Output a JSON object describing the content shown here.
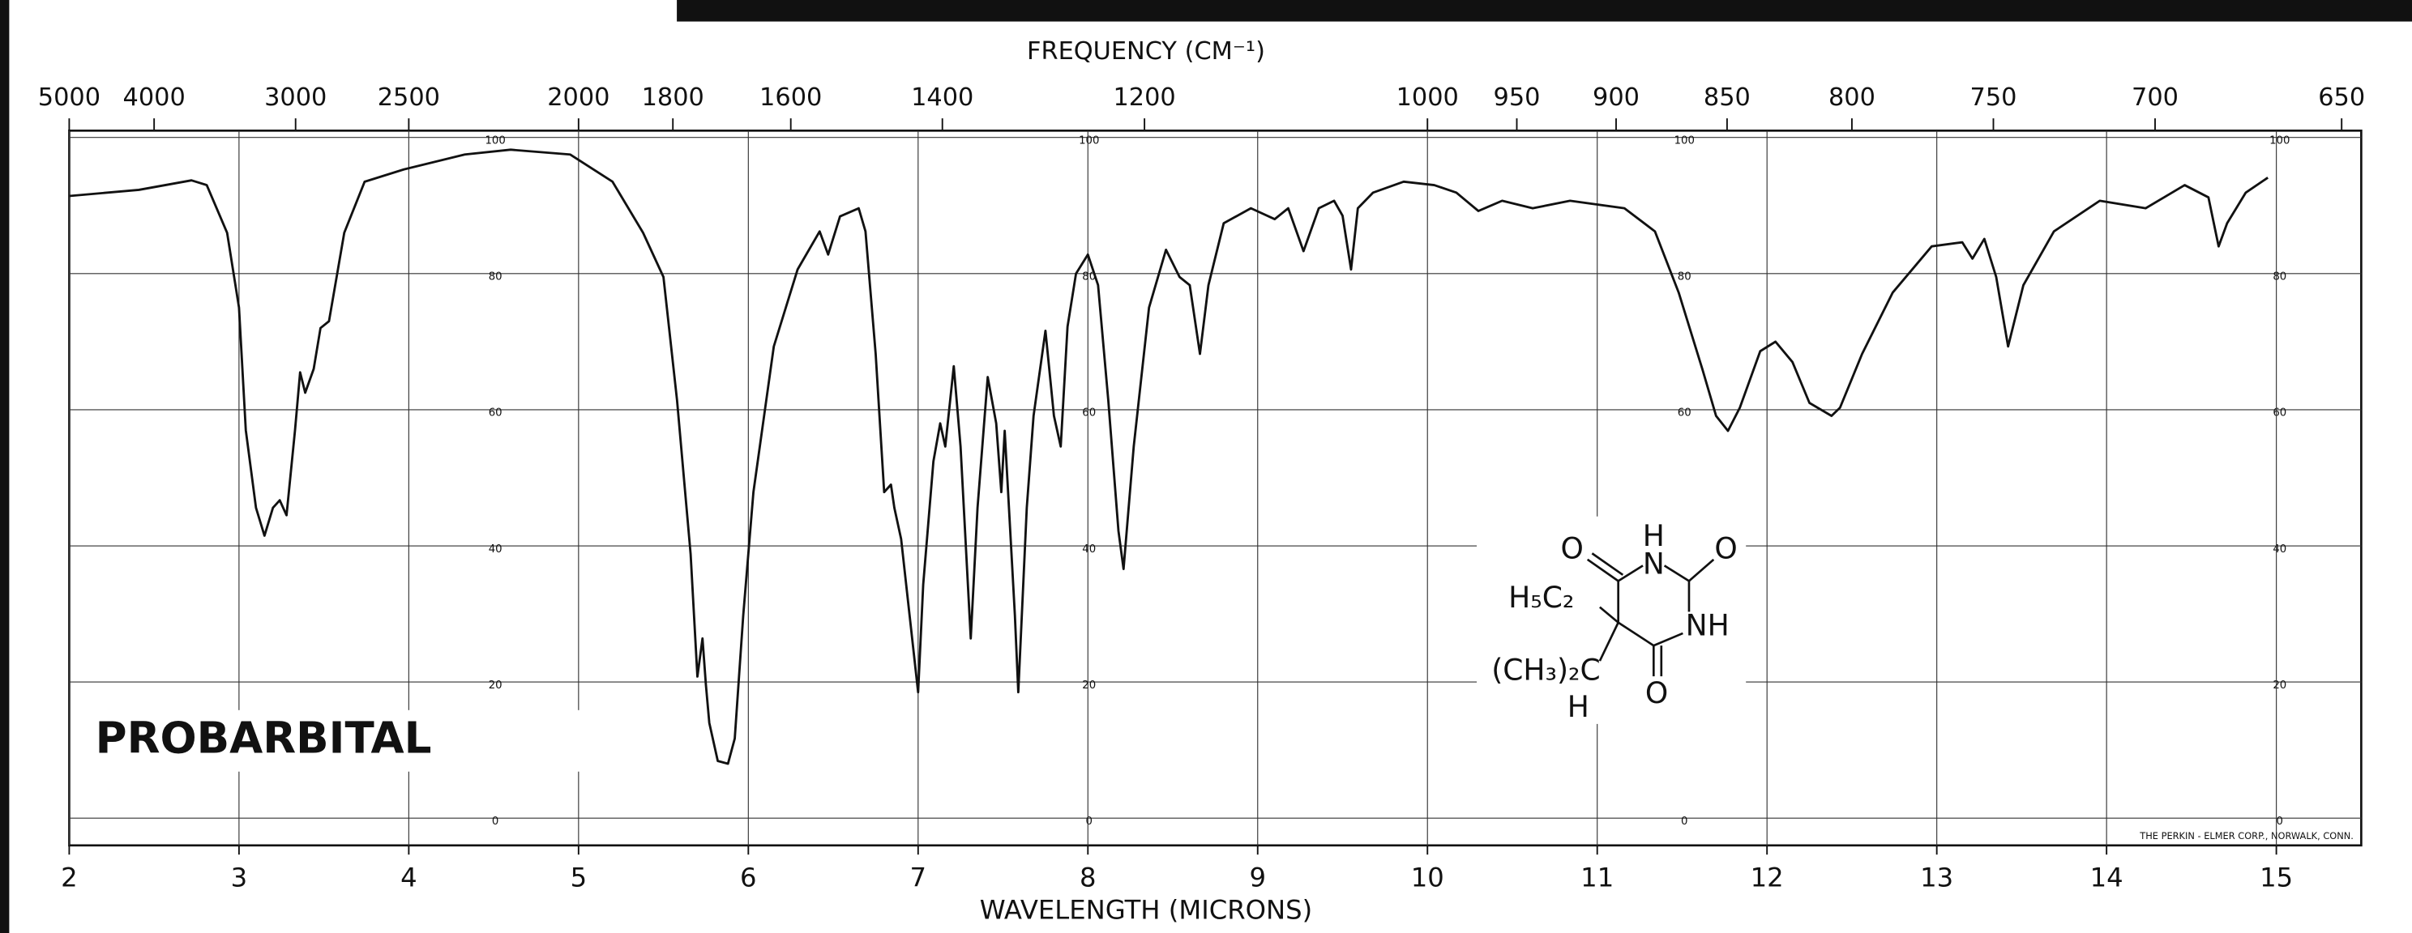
{
  "chart_data": {
    "type": "line",
    "title": "PROBARBITAL",
    "x_label": "WAVELENGTH (MICRONS)",
    "x2_label": "FREQUENCY (CM⁻¹)",
    "credit": "THE PERKIN - ELMER CORP., NORWALK, CONN.",
    "xlim": [
      2,
      15.5
    ],
    "xticks": [
      2,
      3,
      4,
      5,
      6,
      7,
      8,
      9,
      10,
      11,
      12,
      13,
      14,
      15
    ],
    "x2ticks": [
      5000,
      4000,
      3000,
      2500,
      2000,
      1800,
      1600,
      1400,
      1200,
      1000,
      950,
      900,
      850,
      800,
      750,
      700,
      650
    ],
    "ylim": [
      -4,
      101
    ],
    "yticks": [
      0,
      20,
      40,
      60,
      80,
      100
    ],
    "grid": true,
    "series": [
      {
        "name": "PROBARBITAL",
        "color": "#111111",
        "x": [
          2.0,
          2.41,
          2.72,
          2.81,
          2.93,
          3.0,
          3.04,
          3.1,
          3.15,
          3.2,
          3.24,
          3.28,
          3.33,
          3.36,
          3.39,
          3.44,
          3.48,
          3.53,
          3.62,
          3.74,
          3.97,
          4.33,
          4.6,
          4.95,
          5.2,
          5.38,
          5.5,
          5.58,
          5.66,
          5.7,
          5.73,
          5.75,
          5.77,
          5.82,
          5.88,
          5.92,
          5.97,
          6.03,
          6.15,
          6.29,
          6.42,
          6.47,
          6.54,
          6.65,
          6.69,
          6.75,
          6.8,
          6.84,
          6.86,
          6.9,
          7.0,
          7.03,
          7.09,
          7.13,
          7.16,
          7.21,
          7.25,
          7.31,
          7.35,
          7.41,
          7.46,
          7.49,
          7.51,
          7.57,
          7.59,
          7.64,
          7.68,
          7.75,
          7.8,
          7.84,
          7.88,
          7.93,
          8.0,
          8.06,
          8.12,
          8.18,
          8.21,
          8.27,
          8.36,
          8.46,
          8.54,
          8.6,
          8.66,
          8.71,
          8.8,
          8.96,
          9.1,
          9.18,
          9.27,
          9.36,
          9.45,
          9.5,
          9.55,
          9.59,
          9.68,
          9.86,
          10.04,
          10.17,
          10.3,
          10.44,
          10.62,
          10.84,
          11.16,
          11.34,
          11.48,
          11.62,
          11.7,
          11.77,
          11.84,
          11.96,
          12.05,
          12.15,
          12.25,
          12.38,
          12.43,
          12.56,
          12.74,
          12.97,
          13.15,
          13.21,
          13.28,
          13.35,
          13.42,
          13.51,
          13.69,
          13.96,
          14.23,
          14.46,
          14.6,
          14.66,
          14.71,
          14.82,
          14.95
        ],
        "values": [
          91.4,
          92.3,
          93.7,
          93,
          86,
          75,
          57,
          45.6,
          41.5,
          45.6,
          46.7,
          44.5,
          57,
          65.5,
          62.5,
          66,
          72,
          73,
          86,
          93.5,
          95.3,
          97.5,
          98.2,
          97.5,
          93.5,
          86,
          79.5,
          61.4,
          38.8,
          20.8,
          26.4,
          19.6,
          14,
          8.4,
          8,
          11.7,
          29.8,
          47.9,
          69.3,
          80.6,
          86.2,
          82.8,
          88.4,
          89.6,
          86.2,
          68.2,
          47.9,
          49,
          45.6,
          41,
          18.5,
          34.3,
          52.4,
          58,
          54.6,
          66.4,
          54.6,
          26.4,
          45.6,
          64.8,
          58,
          47.9,
          56.9,
          29.8,
          18.5,
          45.6,
          59.1,
          71.6,
          59.1,
          54.6,
          72.2,
          80,
          82.8,
          78.3,
          61.4,
          42.2,
          36.6,
          54.6,
          75,
          83.5,
          79.5,
          78.3,
          68.2,
          78.3,
          87.4,
          89.6,
          88,
          89.6,
          83.3,
          89.6,
          90.7,
          88.5,
          80.6,
          89.6,
          91.9,
          93.5,
          93,
          91.9,
          89.2,
          90.7,
          89.6,
          90.7,
          89.6,
          86.2,
          77.2,
          65.9,
          59.1,
          56.9,
          60.3,
          68.6,
          70,
          67,
          61,
          59.1,
          60.3,
          68.2,
          77.2,
          84,
          84.6,
          82.2,
          85.1,
          79.5,
          69.3,
          78.3,
          86.2,
          90.7,
          89.6,
          93,
          91.2,
          84,
          87.4,
          91.9,
          94.1
        ]
      }
    ],
    "structure": {
      "atoms": [
        "O",
        "H",
        "N",
        "O",
        "H₅C₂",
        "NH",
        "(CH₃)₂C",
        "O",
        "H"
      ]
    }
  }
}
